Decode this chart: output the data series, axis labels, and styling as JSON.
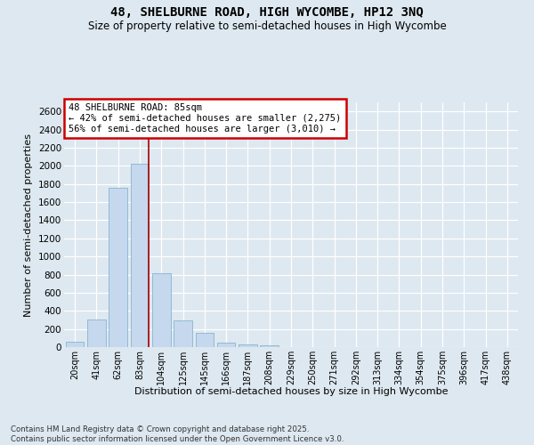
{
  "title_line1": "48, SHELBURNE ROAD, HIGH WYCOMBE, HP12 3NQ",
  "title_line2": "Size of property relative to semi-detached houses in High Wycombe",
  "xlabel": "Distribution of semi-detached houses by size in High Wycombe",
  "ylabel": "Number of semi-detached properties",
  "categories": [
    "20sqm",
    "41sqm",
    "62sqm",
    "83sqm",
    "104sqm",
    "125sqm",
    "145sqm",
    "166sqm",
    "187sqm",
    "208sqm",
    "229sqm",
    "250sqm",
    "271sqm",
    "292sqm",
    "313sqm",
    "334sqm",
    "354sqm",
    "375sqm",
    "396sqm",
    "417sqm",
    "438sqm"
  ],
  "values": [
    55,
    300,
    1760,
    2020,
    815,
    290,
    160,
    45,
    30,
    20,
    0,
    0,
    0,
    0,
    0,
    0,
    0,
    0,
    0,
    0,
    0
  ],
  "bar_color": "#c5d8ed",
  "bar_edge_color": "#7aaacc",
  "annotation_line1": "48 SHELBURNE ROAD: 85sqm",
  "annotation_line2": "← 42% of semi-detached houses are smaller (2,275)",
  "annotation_line3": "56% of semi-detached houses are larger (3,010) →",
  "annotation_box_facecolor": "#ffffff",
  "annotation_box_edgecolor": "#cc0000",
  "vline_color": "#aa0000",
  "subject_bar_index": 3,
  "ylim": [
    0,
    2700
  ],
  "yticks": [
    0,
    200,
    400,
    600,
    800,
    1000,
    1200,
    1400,
    1600,
    1800,
    2000,
    2200,
    2400,
    2600
  ],
  "bg_color": "#dde8f0",
  "grid_color": "#ffffff",
  "footer_line1": "Contains HM Land Registry data © Crown copyright and database right 2025.",
  "footer_line2": "Contains public sector information licensed under the Open Government Licence v3.0."
}
